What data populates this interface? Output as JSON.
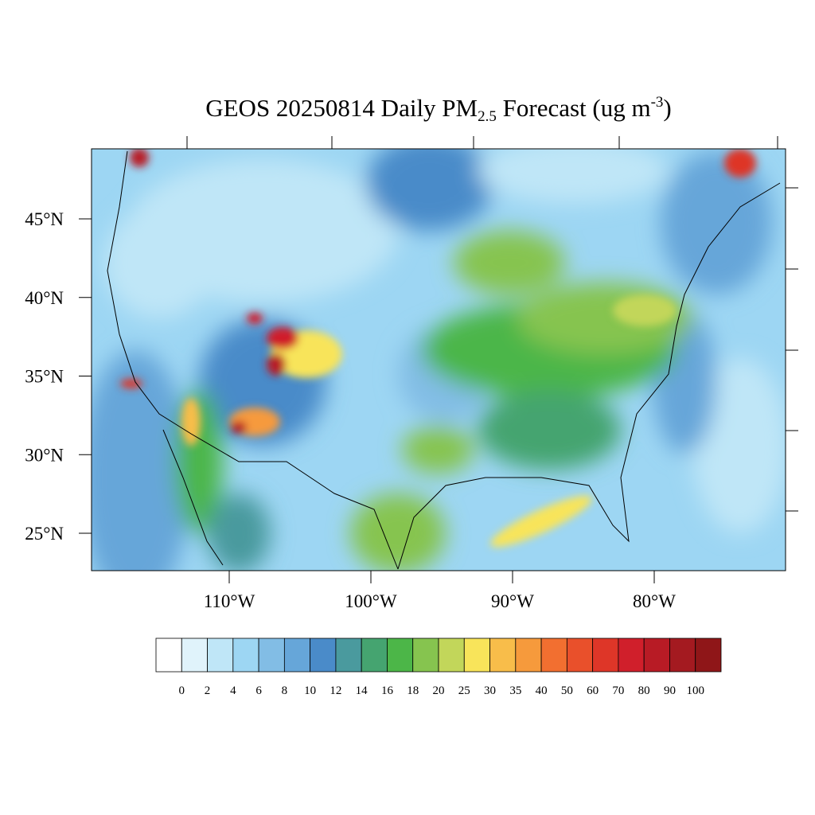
{
  "title": {
    "parts": [
      {
        "text": "GEOS 20250814 Daily PM",
        "style": "normal"
      },
      {
        "text": "2.5",
        "style": "sub"
      },
      {
        "text": " Forecast (ug m",
        "style": "normal"
      },
      {
        "text": "-3",
        "style": "sup"
      },
      {
        "text": ")",
        "style": "normal"
      }
    ]
  },
  "map": {
    "longitude_labels": [
      {
        "value": -110,
        "label": "110°W"
      },
      {
        "value": -100,
        "label": "100°W"
      },
      {
        "value": -90,
        "label": "90°W"
      },
      {
        "value": -80,
        "label": "80°W"
      }
    ],
    "latitude_labels": [
      {
        "value": 45,
        "label": "45°N"
      },
      {
        "value": 40,
        "label": "40°N"
      },
      {
        "value": 35,
        "label": "35°N"
      },
      {
        "value": 30,
        "label": "30°N"
      },
      {
        "value": 25,
        "label": "25°N"
      }
    ]
  },
  "colorbar": {
    "levels": [
      0,
      2,
      4,
      6,
      8,
      10,
      12,
      14,
      16,
      18,
      20,
      25,
      30,
      35,
      40,
      50,
      60,
      70,
      80,
      90,
      100
    ],
    "colors": [
      "#ffffff",
      "#e0f3fb",
      "#bfe6f7",
      "#9dd6f3",
      "#82bde5",
      "#66a6d9",
      "#4a8bc9",
      "#4a9a9e",
      "#45a470",
      "#4cb648",
      "#86c44f",
      "#c2d65a",
      "#f8e45a",
      "#f8bd4a",
      "#f69a3c",
      "#f26f30",
      "#e9502b",
      "#de3628",
      "#d01f2b",
      "#b81b25",
      "#a41a20",
      "#8f1618"
    ]
  }
}
